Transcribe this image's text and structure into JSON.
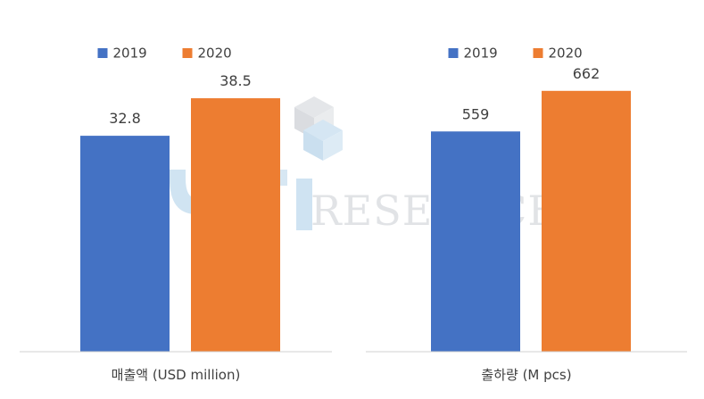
{
  "watermark": {
    "word": "RESEARCH",
    "logo_colors": [
      "#9fc6e3",
      "#c7cbd1"
    ]
  },
  "chart_data": [
    {
      "type": "bar",
      "categories": [
        "매출액 (USD million)"
      ],
      "xlabel": "매출액 (USD million)",
      "ylim": [
        0,
        48
      ],
      "legend_position": "top-center",
      "grid": false,
      "series": [
        {
          "name": "2019",
          "color": "#4472c4",
          "values": [
            32.8
          ],
          "labels": [
            "32.8"
          ]
        },
        {
          "name": "2020",
          "color": "#ed7d31",
          "values": [
            38.5
          ],
          "labels": [
            "38.5"
          ]
        }
      ]
    },
    {
      "type": "bar",
      "categories": [
        "출하량 (M pcs)"
      ],
      "xlabel": "출하량 (M pcs)",
      "ylim": [
        0,
        802
      ],
      "legend_position": "top-center",
      "grid": false,
      "series": [
        {
          "name": "2019",
          "color": "#4472c4",
          "values": [
            559
          ],
          "labels": [
            "559"
          ]
        },
        {
          "name": "2020",
          "color": "#ed7d31",
          "values": [
            662
          ],
          "labels": [
            "662"
          ]
        }
      ]
    }
  ]
}
